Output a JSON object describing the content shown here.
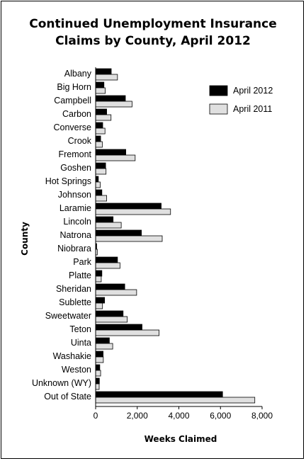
{
  "chart_data": {
    "type": "bar",
    "orientation": "horizontal",
    "title_line1": "Continued Unemployment Insurance",
    "title_line2": "Claims by County, April 2012",
    "xlabel": "Weeks Claimed",
    "ylabel": "County",
    "xlim": [
      0,
      8000
    ],
    "xticks": [
      "0",
      "2,000",
      "4,000",
      "6,000",
      "8,000"
    ],
    "xtick_values": [
      0,
      2000,
      4000,
      6000,
      8000
    ],
    "grid": false,
    "legend_position": "top-right",
    "categories": [
      "Albany",
      "Big Horn",
      "Campbell",
      "Carbon",
      "Converse",
      "Crook",
      "Fremont",
      "Goshen",
      "Hot Springs",
      "Johnson",
      "Laramie",
      "Lincoln",
      "Natrona",
      "Niobrara",
      "Park",
      "Platte",
      "Sheridan",
      "Sublette",
      "Sweetwater",
      "Teton",
      "Uinta",
      "Washakie",
      "Weston",
      "Unknown (WY)",
      "Out of State"
    ],
    "series": [
      {
        "name": "April 2012",
        "color": "#000000",
        "values": [
          750,
          400,
          1430,
          530,
          340,
          240,
          1450,
          480,
          130,
          300,
          3150,
          840,
          2200,
          50,
          1050,
          300,
          1400,
          430,
          1320,
          2230,
          660,
          360,
          200,
          180,
          6100
        ]
      },
      {
        "name": "April 2011",
        "color": "#e0e0e0",
        "values": [
          1050,
          460,
          1750,
          740,
          450,
          320,
          1900,
          500,
          220,
          530,
          3600,
          1230,
          3200,
          80,
          1170,
          270,
          1970,
          330,
          1520,
          3050,
          820,
          370,
          240,
          170,
          7650
        ]
      }
    ]
  }
}
